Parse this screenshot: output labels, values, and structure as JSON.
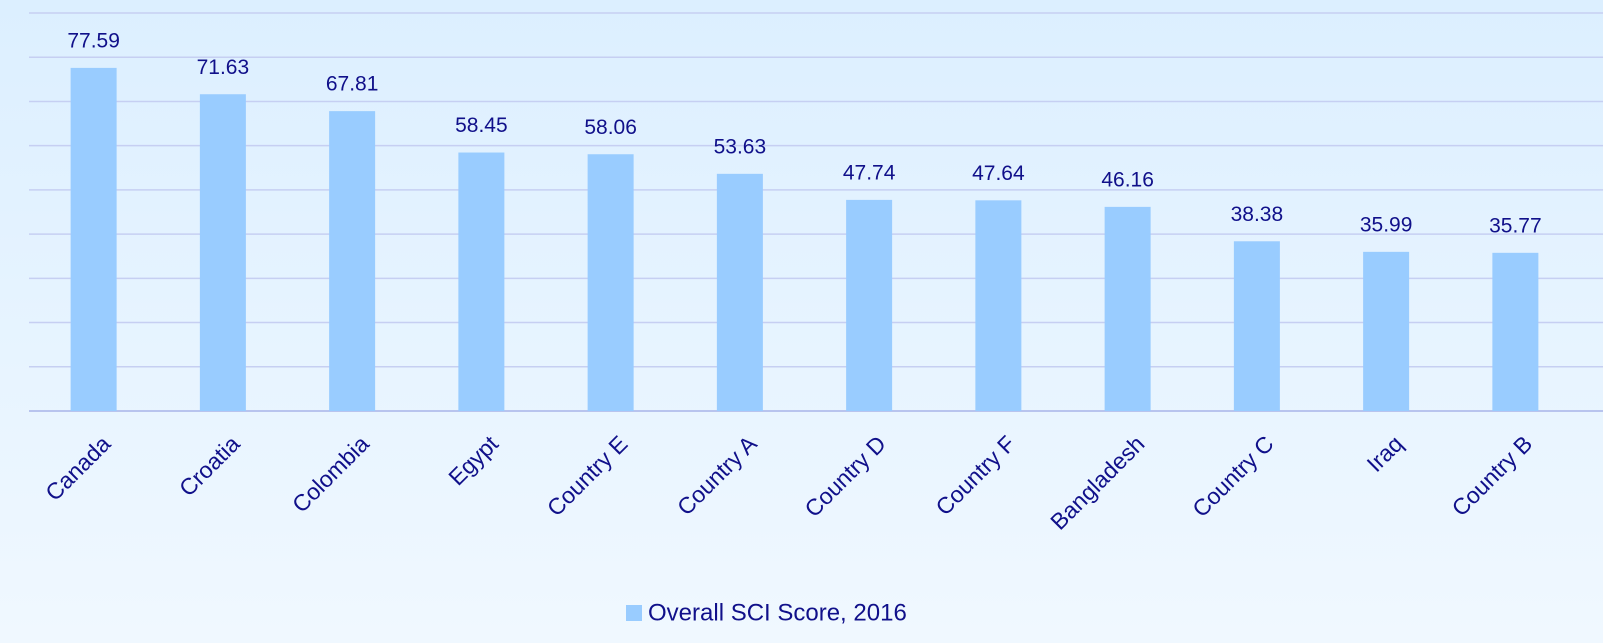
{
  "chart_data": {
    "type": "bar",
    "categories": [
      "Canada",
      "Croatia",
      "Colombia",
      "Egypt",
      "Country E",
      "Country A",
      "Country D",
      "Country F",
      "Bangladesh",
      "Country C",
      "Iraq",
      "Country B"
    ],
    "series": [
      {
        "name": "Overall SCI Score, 2016",
        "color": "#99ccff",
        "values": [
          77.59,
          71.63,
          67.81,
          58.45,
          58.06,
          53.63,
          47.74,
          47.64,
          46.16,
          38.38,
          35.99,
          35.77
        ]
      }
    ],
    "ylim": [
      0,
      90
    ],
    "yticks": [
      0,
      10,
      20,
      30,
      40,
      50,
      60,
      70,
      80,
      90
    ],
    "grid": true,
    "legend": "bottom"
  }
}
